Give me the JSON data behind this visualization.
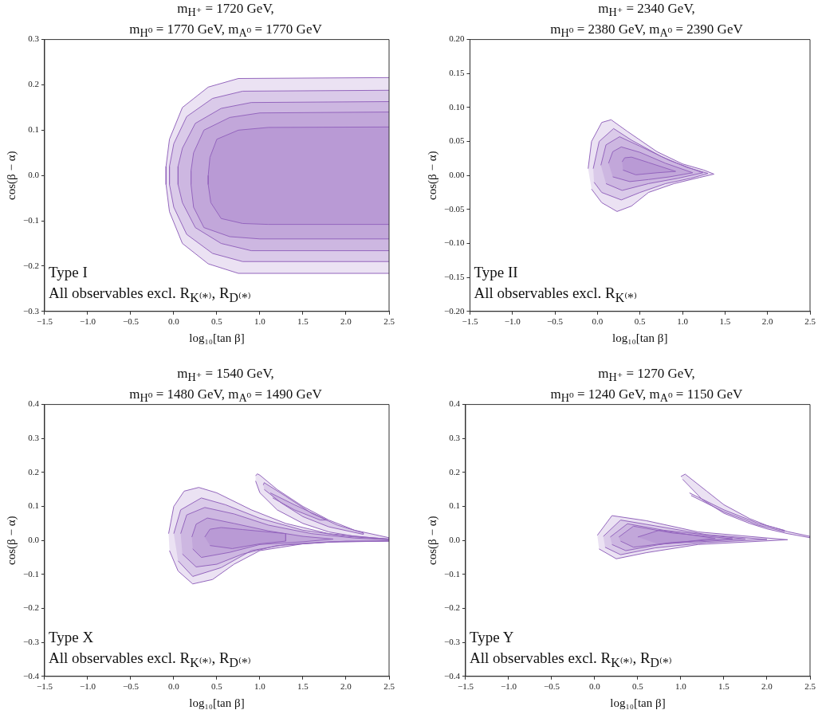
{
  "chart_data": [
    {
      "type": "area",
      "title": "m$_{H⁺}$ = 1720 GeV,\nm$_{H⁰}$ = 1770 GeV, m$_{A⁰}$ = 1770 GeV",
      "xlabel": "log₁₀[tan β]",
      "ylabel": "cos(β − α)",
      "annotations": [
        "Type I",
        "All observables excl. R$_{K⁽*⁾}$, R$_{D⁽*⁾}$"
      ],
      "xlim": [
        -1.5,
        2.5
      ],
      "ylim": [
        -0.3,
        0.3
      ],
      "xticks": [
        {
          "value": -1.5,
          "label": "−1.5"
        },
        {
          "value": -1,
          "label": "−1.0"
        },
        {
          "value": -0.5,
          "label": "−0.5"
        },
        {
          "value": 0,
          "label": "0.0"
        },
        {
          "value": 0.5,
          "label": "0.5"
        },
        {
          "value": 1,
          "label": "1.0"
        },
        {
          "value": 1.5,
          "label": "1.5"
        },
        {
          "value": 2,
          "label": "2.0"
        },
        {
          "value": 2.5,
          "label": "2.5"
        }
      ],
      "yticks": [
        {
          "value": -0.3,
          "label": "−0.3"
        },
        {
          "value": -0.2,
          "label": "−0.2"
        },
        {
          "value": -0.1,
          "label": "−0.1"
        },
        {
          "value": 0,
          "label": "0.0"
        },
        {
          "value": 0.1,
          "label": "0.1"
        },
        {
          "value": 0.2,
          "label": "0.2"
        },
        {
          "value": 0.3,
          "label": "0.3"
        }
      ],
      "series": [
        {
          "color": "#9467bd",
          "x": [
            2.5,
            0.75,
            0.4,
            0.1,
            -0.05,
            -0.09,
            -0.09,
            -0.05,
            0.1,
            0.4,
            0.75,
            2.5
          ],
          "values": [
            0.216,
            0.214,
            0.195,
            0.15,
            0.08,
            0.02,
            -0.02,
            -0.08,
            -0.15,
            -0.195,
            -0.216,
            -0.216
          ]
        },
        {
          "color": "#9467bd",
          "x": [
            2.5,
            0.8,
            0.45,
            0.15,
            0.0,
            -0.05,
            -0.05,
            0.0,
            0.15,
            0.45,
            0.8,
            2.5
          ],
          "values": [
            0.188,
            0.186,
            0.17,
            0.13,
            0.07,
            0.02,
            -0.02,
            -0.07,
            -0.13,
            -0.172,
            -0.19,
            -0.19
          ]
        },
        {
          "color": "#9467bd",
          "x": [
            2.5,
            0.9,
            0.55,
            0.25,
            0.1,
            0.05,
            0.05,
            0.1,
            0.25,
            0.55,
            0.9,
            2.5
          ],
          "values": [
            0.163,
            0.161,
            0.148,
            0.115,
            0.06,
            0.02,
            -0.02,
            -0.06,
            -0.115,
            -0.15,
            -0.166,
            -0.166
          ]
        },
        {
          "color": "#9467bd",
          "x": [
            2.5,
            1.0,
            0.65,
            0.35,
            0.23,
            0.2,
            0.2,
            0.23,
            0.35,
            0.65,
            1.0,
            2.5
          ],
          "values": [
            0.14,
            0.138,
            0.128,
            0.1,
            0.05,
            0.01,
            -0.02,
            -0.07,
            -0.115,
            -0.135,
            -0.14,
            -0.14
          ]
        },
        {
          "color": "#9467bd",
          "x": [
            2.5,
            1.1,
            0.75,
            0.5,
            0.42,
            0.4,
            0.4,
            0.43,
            0.55,
            0.8,
            1.1,
            2.5
          ],
          "values": [
            0.107,
            0.106,
            0.1,
            0.08,
            0.04,
            0.0,
            -0.02,
            -0.06,
            -0.095,
            -0.106,
            -0.108,
            -0.108
          ]
        }
      ]
    },
    {
      "type": "area",
      "title": "m$_{H⁺}$ = 2340 GeV,\nm$_{H⁰}$ = 2380 GeV, m$_{A⁰}$ = 2390 GeV",
      "xlabel": "log₁₀[tan β]",
      "ylabel": "cos(β − α)",
      "annotations": [
        "Type II",
        "All observables excl. R$_{K⁽*⁾}$"
      ],
      "xlim": [
        -1.5,
        2.5
      ],
      "ylim": [
        -0.2,
        0.2
      ],
      "xticks": [
        {
          "value": -1.5,
          "label": "−1.5"
        },
        {
          "value": -1,
          "label": "−1.0"
        },
        {
          "value": -0.5,
          "label": "−0.5"
        },
        {
          "value": 0,
          "label": "0.0"
        },
        {
          "value": 0.5,
          "label": "0.5"
        },
        {
          "value": 1,
          "label": "1.0"
        },
        {
          "value": 1.5,
          "label": "1.5"
        },
        {
          "value": 2,
          "label": "2.0"
        },
        {
          "value": 2.5,
          "label": "2.5"
        }
      ],
      "yticks": [
        {
          "value": -0.2,
          "label": "−0.20"
        },
        {
          "value": -0.15,
          "label": "−0.15"
        },
        {
          "value": -0.1,
          "label": "−0.10"
        },
        {
          "value": -0.05,
          "label": "−0.05"
        },
        {
          "value": 0,
          "label": "0.00"
        },
        {
          "value": 0.05,
          "label": "0.05"
        },
        {
          "value": 0.1,
          "label": "0.10"
        },
        {
          "value": 0.15,
          "label": "0.15"
        },
        {
          "value": 0.2,
          "label": "0.20"
        }
      ],
      "series": [
        {
          "color": "#9467bd",
          "x": [
            -0.11,
            -0.07,
            0.05,
            0.16,
            0.35,
            0.7,
            1.0,
            1.25,
            1.37,
            1.2,
            0.9,
            0.6,
            0.4,
            0.23,
            0.05,
            -0.07
          ],
          "values": [
            0.01,
            0.05,
            0.078,
            0.082,
            0.065,
            0.035,
            0.017,
            0.008,
            0.002,
            -0.003,
            -0.012,
            -0.025,
            -0.045,
            -0.053,
            -0.04,
            -0.02
          ]
        },
        {
          "color": "#9467bd",
          "x": [
            -0.05,
            0.02,
            0.19,
            0.4,
            0.75,
            1.05,
            1.3,
            1.1,
            0.8,
            0.5,
            0.28,
            0.05,
            -0.04
          ],
          "values": [
            0.01,
            0.05,
            0.069,
            0.052,
            0.028,
            0.012,
            0.003,
            -0.004,
            -0.012,
            -0.025,
            -0.036,
            -0.025,
            -0.01
          ]
        },
        {
          "color": "#9467bd",
          "x": [
            0.04,
            0.1,
            0.26,
            0.5,
            0.85,
            1.24,
            0.95,
            0.6,
            0.29,
            0.1
          ],
          "values": [
            0.015,
            0.045,
            0.057,
            0.043,
            0.022,
            0.004,
            -0.004,
            -0.012,
            -0.022,
            -0.012
          ]
        },
        {
          "color": "#9467bd",
          "x": [
            0.13,
            0.18,
            0.28,
            0.5,
            0.8,
            1.12,
            0.85,
            0.6,
            0.38,
            0.18
          ],
          "values": [
            0.018,
            0.035,
            0.042,
            0.034,
            0.018,
            0.004,
            -0.002,
            -0.006,
            -0.009,
            -0.002
          ]
        },
        {
          "color": "#9467bd",
          "x": [
            0.29,
            0.32,
            0.4,
            0.6,
            0.92,
            0.7,
            0.45,
            0.3
          ],
          "values": [
            0.02,
            0.026,
            0.027,
            0.019,
            0.006,
            0.004,
            0.001,
            0.008
          ]
        }
      ]
    },
    {
      "type": "area",
      "title": "m$_{H⁺}$ = 1540 GeV,\nm$_{H⁰}$ = 1480 GeV, m$_{A⁰}$ = 1490 GeV",
      "xlabel": "log₁₀[tan β]",
      "ylabel": "cos(β − α)",
      "annotations": [
        "Type X",
        "All observables excl. R$_{K⁽*⁾}$, R$_{D⁽*⁾}$"
      ],
      "xlim": [
        -1.5,
        2.5
      ],
      "ylim": [
        -0.4,
        0.4
      ],
      "xticks": [
        {
          "value": -1.5,
          "label": "−1.5"
        },
        {
          "value": -1,
          "label": "−1.0"
        },
        {
          "value": -0.5,
          "label": "−0.5"
        },
        {
          "value": 0,
          "label": "0.0"
        },
        {
          "value": 0.5,
          "label": "0.5"
        },
        {
          "value": 1,
          "label": "1.0"
        },
        {
          "value": 1.5,
          "label": "1.5"
        },
        {
          "value": 2,
          "label": "2.0"
        },
        {
          "value": 2.5,
          "label": "2.5"
        }
      ],
      "yticks": [
        {
          "value": -0.4,
          "label": "−0.4"
        },
        {
          "value": -0.3,
          "label": "−0.3"
        },
        {
          "value": -0.2,
          "label": "−0.2"
        },
        {
          "value": -0.1,
          "label": "−0.1"
        },
        {
          "value": 0,
          "label": "0.0"
        },
        {
          "value": 0.1,
          "label": "0.1"
        },
        {
          "value": 0.2,
          "label": "0.2"
        },
        {
          "value": 0.3,
          "label": "0.3"
        },
        {
          "value": 0.4,
          "label": "0.4"
        }
      ],
      "series": [
        {
          "color": "#9467bd",
          "x": [
            -0.06,
            0.0,
            0.12,
            0.29,
            0.5,
            0.9,
            1.3,
            1.8,
            2.3,
            2.5,
            2.5,
            2.0,
            1.5,
            1.0,
            0.7,
            0.45,
            0.22,
            0.05,
            -0.05
          ],
          "values": [
            0.02,
            0.1,
            0.145,
            0.156,
            0.14,
            0.09,
            0.05,
            0.02,
            0.008,
            0.004,
            -0.001,
            -0.002,
            -0.01,
            -0.03,
            -0.07,
            -0.115,
            -0.128,
            -0.09,
            -0.03
          ]
        },
        {
          "color": "#9467bd",
          "x": [
            0.0,
            0.08,
            0.32,
            0.6,
            1.0,
            1.5,
            2.0,
            2.5,
            2.5,
            1.8,
            1.3,
            0.9,
            0.55,
            0.22,
            0.05
          ],
          "values": [
            0.02,
            0.09,
            0.125,
            0.105,
            0.065,
            0.03,
            0.012,
            0.003,
            -0.002,
            -0.004,
            -0.012,
            -0.03,
            -0.08,
            -0.106,
            -0.06
          ]
        },
        {
          "color": "#9467bd",
          "x": [
            0.08,
            0.15,
            0.36,
            0.7,
            1.1,
            1.6,
            2.1,
            2.5,
            2.5,
            1.8,
            1.2,
            0.8,
            0.5,
            0.26,
            0.1
          ],
          "values": [
            0.02,
            0.075,
            0.097,
            0.078,
            0.045,
            0.02,
            0.007,
            0.002,
            -0.002,
            -0.005,
            -0.015,
            -0.04,
            -0.07,
            -0.078,
            -0.04
          ]
        },
        {
          "color": "#9467bd",
          "x": [
            0.21,
            0.26,
            0.39,
            0.7,
            1.1,
            1.5,
            1.85,
            1.5,
            1.0,
            0.65,
            0.32,
            0.22
          ],
          "values": [
            0.01,
            0.048,
            0.066,
            0.05,
            0.028,
            0.012,
            0.004,
            -0.004,
            -0.012,
            -0.035,
            -0.05,
            -0.025
          ]
        },
        {
          "color": "#9467bd",
          "x": [
            0.36,
            0.42,
            0.55,
            0.8,
            1.3,
            1.3,
            1.0,
            0.68,
            0.42
          ],
          "values": [
            0.01,
            0.033,
            0.038,
            0.032,
            0.02,
            -0.002,
            -0.01,
            -0.024,
            -0.015
          ]
        },
        {
          "color": "#9467bd",
          "x": [
            0.95,
            0.97,
            1.0,
            1.2,
            1.5,
            1.8,
            2.1,
            2.5,
            2.5,
            2.1,
            1.8,
            1.5,
            1.2,
            1.0,
            0.95
          ],
          "values": [
            0.19,
            0.196,
            0.192,
            0.15,
            0.1,
            0.06,
            0.03,
            0.008,
            0.004,
            0.012,
            0.025,
            0.05,
            0.09,
            0.14,
            0.175
          ]
        },
        {
          "color": "#9467bd",
          "x": [
            1.04,
            1.05,
            1.3,
            1.6,
            1.9,
            2.2,
            2.2,
            1.8,
            1.5,
            1.25,
            1.05
          ],
          "values": [
            0.163,
            0.17,
            0.13,
            0.08,
            0.045,
            0.022,
            0.018,
            0.04,
            0.07,
            0.11,
            0.15
          ]
        },
        {
          "color": "#9467bd",
          "x": [
            1.12,
            1.4,
            1.7,
            1.78,
            1.7,
            1.4,
            1.15
          ],
          "values": [
            0.14,
            0.105,
            0.07,
            0.06,
            0.06,
            0.09,
            0.125
          ]
        }
      ]
    },
    {
      "type": "area",
      "title": "m$_{H⁺}$ = 1270 GeV,\nm$_{H⁰}$ = 1240 GeV, m$_{A⁰}$ = 1150 GeV",
      "xlabel": "log₁₀[tan β]",
      "ylabel": "cos(β − α)",
      "annotations": [
        "Type Y",
        "All observables excl. R$_{K⁽*⁾}$, R$_{D⁽*⁾}$"
      ],
      "xlim": [
        -1.5,
        2.5
      ],
      "ylim": [
        -0.4,
        0.4
      ],
      "xticks": [
        {
          "value": -1.5,
          "label": "−1.5"
        },
        {
          "value": -1,
          "label": "−1.0"
        },
        {
          "value": -0.5,
          "label": "−0.5"
        },
        {
          "value": 0,
          "label": "0.0"
        },
        {
          "value": 0.5,
          "label": "0.5"
        },
        {
          "value": 1,
          "label": "1.0"
        },
        {
          "value": 1.5,
          "label": "1.5"
        },
        {
          "value": 2,
          "label": "2.0"
        },
        {
          "value": 2.5,
          "label": "2.5"
        }
      ],
      "yticks": [
        {
          "value": -0.4,
          "label": "−0.4"
        },
        {
          "value": -0.3,
          "label": "−0.3"
        },
        {
          "value": -0.2,
          "label": "−0.2"
        },
        {
          "value": -0.1,
          "label": "−0.1"
        },
        {
          "value": 0,
          "label": "0.0"
        },
        {
          "value": 0.1,
          "label": "0.1"
        },
        {
          "value": 0.2,
          "label": "0.2"
        },
        {
          "value": 0.3,
          "label": "0.3"
        },
        {
          "value": 0.4,
          "label": "0.4"
        }
      ],
      "series": [
        {
          "color": "#9467bd",
          "x": [
            0.03,
            0.2,
            0.6,
            1.2,
            2.24,
            1.2,
            0.6,
            0.25,
            0.05
          ],
          "values": [
            0.015,
            0.073,
            0.058,
            0.025,
            0.002,
            -0.012,
            -0.036,
            -0.054,
            -0.025
          ]
        },
        {
          "color": "#9467bd",
          "x": [
            0.1,
            0.3,
            0.7,
            1.3,
            2.0,
            1.3,
            0.7,
            0.3,
            0.12
          ],
          "values": [
            0.012,
            0.06,
            0.043,
            0.017,
            0.003,
            -0.006,
            -0.022,
            -0.042,
            -0.02
          ]
        },
        {
          "color": "#9467bd",
          "x": [
            0.18,
            0.38,
            0.8,
            1.75,
            0.8,
            0.36,
            0.2
          ],
          "values": [
            0.01,
            0.049,
            0.03,
            0.004,
            -0.01,
            -0.03,
            -0.012
          ]
        },
        {
          "color": "#9467bd",
          "x": [
            0.28,
            0.45,
            0.9,
            1.6,
            0.9,
            0.45,
            0.3
          ],
          "values": [
            0.01,
            0.042,
            0.022,
            0.005,
            -0.006,
            -0.02,
            -0.002
          ]
        },
        {
          "color": "#9467bd",
          "x": [
            0.5,
            0.75,
            1.4,
            0.75
          ],
          "values": [
            0.01,
            0.03,
            0.006,
            -0.012
          ]
        },
        {
          "color": "#9467bd",
          "x": [
            1.0,
            1.05,
            1.3,
            1.5,
            1.8,
            2.0,
            2.24,
            2.5,
            2.5,
            2.24,
            2.0,
            1.8,
            1.5,
            1.25,
            1.02
          ],
          "values": [
            0.188,
            0.195,
            0.145,
            0.105,
            0.064,
            0.044,
            0.026,
            0.012,
            0.008,
            0.02,
            0.034,
            0.05,
            0.08,
            0.12,
            0.18
          ]
        },
        {
          "color": "#9467bd",
          "x": [
            1.1,
            1.5,
            1.9,
            2.2,
            2.2,
            1.9,
            1.5,
            1.12
          ],
          "values": [
            0.14,
            0.09,
            0.05,
            0.03,
            0.026,
            0.045,
            0.084,
            0.132
          ]
        }
      ]
    }
  ]
}
